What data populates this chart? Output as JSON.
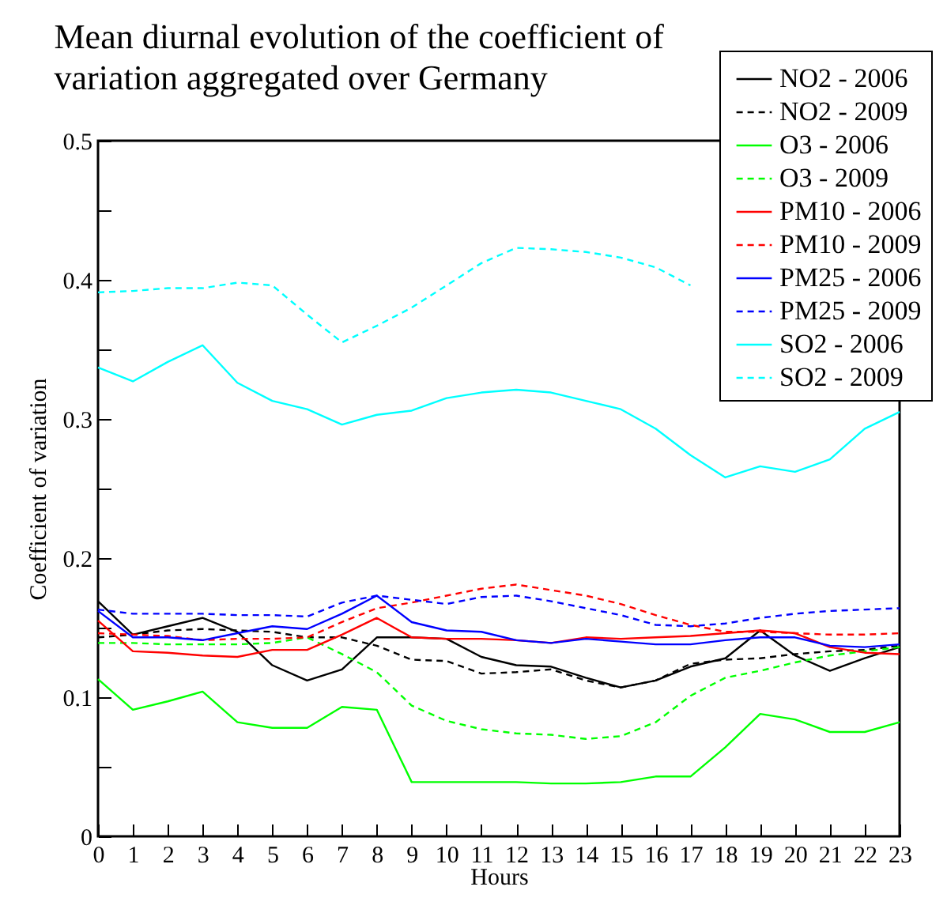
{
  "chart_data": {
    "type": "line",
    "title": "Mean diurnal evolution of the coefficient of\nvariation aggregated over Germany",
    "xlabel": "Hours",
    "ylabel": "Coefficient of variation",
    "x": [
      0,
      1,
      2,
      3,
      4,
      5,
      6,
      7,
      8,
      9,
      10,
      11,
      12,
      13,
      14,
      15,
      16,
      17,
      18,
      19,
      20,
      21,
      22,
      23
    ],
    "xlim": [
      0,
      23
    ],
    "xticks": [
      0,
      1,
      2,
      3,
      4,
      5,
      6,
      7,
      8,
      9,
      10,
      11,
      12,
      13,
      14,
      15,
      16,
      17,
      18,
      19,
      20,
      21,
      22,
      23
    ],
    "ylim": [
      0,
      0.5
    ],
    "yticks": [
      0,
      {
        "value": 0.05,
        "label": null
      },
      0.1,
      {
        "value": 0.15,
        "label": null
      },
      0.2,
      {
        "value": 0.25,
        "label": null
      },
      0.3,
      {
        "value": 0.35,
        "label": null
      },
      0.4,
      {
        "value": 0.45,
        "label": null
      },
      0.5
    ],
    "grid": false,
    "legend": "top right",
    "marker": "none",
    "series": [
      {
        "name": "NO2 - 2006",
        "color": "#000000",
        "line_style": "solid",
        "values": [
          0.169,
          0.145,
          0.151,
          0.157,
          0.147,
          0.123,
          0.112,
          0.12,
          0.143,
          0.143,
          0.142,
          0.129,
          0.123,
          0.122,
          0.114,
          0.107,
          0.112,
          0.122,
          0.128,
          0.148,
          0.13,
          0.119,
          0.128,
          0.136
        ]
      },
      {
        "name": "NO2 - 2009",
        "color": "#000000",
        "line_style": "dashed",
        "values": [
          0.143,
          0.145,
          0.148,
          0.149,
          0.148,
          0.147,
          0.143,
          0.143,
          0.137,
          0.127,
          0.126,
          0.117,
          0.118,
          0.12,
          0.112,
          0.107,
          0.112,
          0.124,
          0.127,
          0.128,
          0.131,
          0.133,
          0.134,
          0.137
        ]
      },
      {
        "name": "O3 - 2006",
        "color": "#00ff00",
        "line_style": "solid",
        "values": [
          0.113,
          0.091,
          0.097,
          0.104,
          0.082,
          0.078,
          0.078,
          0.093,
          0.091,
          0.039,
          0.039,
          0.039,
          0.039,
          0.038,
          0.038,
          0.039,
          0.043,
          0.043,
          0.064,
          0.088,
          0.084,
          0.075,
          0.075,
          0.082
        ]
      },
      {
        "name": "O3 - 2009",
        "color": "#00ff00",
        "line_style": "dashed",
        "values": [
          0.139,
          0.139,
          0.138,
          0.138,
          0.138,
          0.139,
          0.143,
          0.131,
          0.118,
          0.094,
          0.083,
          0.077,
          0.074,
          0.073,
          0.07,
          0.072,
          0.082,
          0.101,
          0.114,
          0.119,
          0.125,
          0.13,
          0.133,
          0.136
        ]
      },
      {
        "name": "PM10 - 2006",
        "color": "#ff0000",
        "line_style": "solid",
        "values": [
          0.155,
          0.133,
          0.132,
          0.13,
          0.129,
          0.134,
          0.134,
          0.145,
          0.157,
          0.143,
          0.142,
          0.142,
          0.141,
          0.139,
          0.143,
          0.142,
          0.143,
          0.144,
          0.146,
          0.148,
          0.146,
          0.136,
          0.132,
          0.131
        ]
      },
      {
        "name": "PM10 - 2009",
        "color": "#ff0000",
        "line_style": "dashed",
        "values": [
          0.146,
          0.145,
          0.144,
          0.141,
          0.142,
          0.142,
          0.143,
          0.154,
          0.164,
          0.168,
          0.173,
          0.178,
          0.181,
          0.177,
          0.173,
          0.167,
          0.159,
          0.152,
          0.147,
          0.147,
          0.146,
          0.145,
          0.145,
          0.146
        ]
      },
      {
        "name": "PM25 - 2006",
        "color": "#0000ff",
        "line_style": "solid",
        "values": [
          0.162,
          0.143,
          0.143,
          0.141,
          0.146,
          0.151,
          0.149,
          0.16,
          0.173,
          0.154,
          0.148,
          0.147,
          0.141,
          0.139,
          0.142,
          0.14,
          0.138,
          0.138,
          0.141,
          0.143,
          0.143,
          0.137,
          0.136,
          0.138
        ]
      },
      {
        "name": "PM25 - 2009",
        "color": "#0000ff",
        "line_style": "dashed",
        "values": [
          0.163,
          0.16,
          0.16,
          0.16,
          0.159,
          0.159,
          0.158,
          0.168,
          0.173,
          0.17,
          0.167,
          0.172,
          0.173,
          0.169,
          0.164,
          0.159,
          0.152,
          0.151,
          0.153,
          0.157,
          0.16,
          0.162,
          0.163,
          0.164
        ]
      },
      {
        "name": "SO2 - 2006",
        "color": "#00ffff",
        "line_style": "solid",
        "values": [
          0.337,
          0.327,
          0.341,
          0.353,
          0.326,
          0.313,
          0.307,
          0.296,
          0.303,
          0.306,
          0.315,
          0.319,
          0.321,
          0.319,
          0.313,
          0.307,
          0.293,
          0.274,
          0.258,
          0.266,
          0.262,
          0.271,
          0.293,
          0.305
        ]
      },
      {
        "name": "SO2 - 2009",
        "color": "#00ffff",
        "line_style": "dashed",
        "values": [
          0.391,
          0.392,
          0.394,
          0.394,
          0.398,
          0.396,
          0.375,
          0.355,
          0.367,
          0.38,
          0.396,
          0.412,
          0.423,
          0.422,
          0.42,
          0.416,
          0.409,
          0.396,
          null,
          null,
          null,
          null,
          null,
          null
        ]
      }
    ]
  }
}
